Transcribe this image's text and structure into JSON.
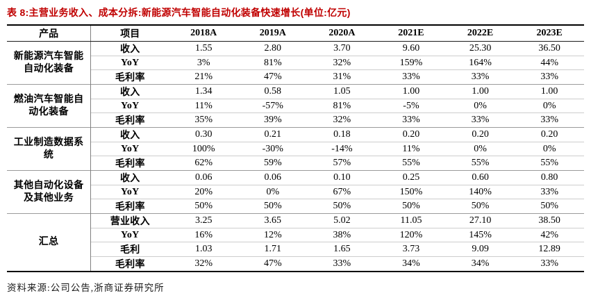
{
  "title": "表 8:主营业务收入、成本分拆:新能源汽车智能自动化装备快速增长(单位:亿元)",
  "colors": {
    "title_red": "#c00000",
    "border_black": "#000000",
    "group_separator": "#9a9a9a",
    "row_separator": "#cdcdcd",
    "text": "#000000"
  },
  "table": {
    "headers": [
      "产品",
      "项目",
      "2018A",
      "2019A",
      "2020A",
      "2021E",
      "2022E",
      "2023E"
    ],
    "groups": [
      {
        "product": "新能源汽车智能自动化装备",
        "rows": [
          {
            "item": "收入",
            "values": [
              "1.55",
              "2.80",
              "3.70",
              "9.60",
              "25.30",
              "36.50"
            ]
          },
          {
            "item": "YoY",
            "values": [
              "3%",
              "81%",
              "32%",
              "159%",
              "164%",
              "44%"
            ]
          },
          {
            "item": "毛利率",
            "values": [
              "21%",
              "47%",
              "31%",
              "33%",
              "33%",
              "33%"
            ]
          }
        ]
      },
      {
        "product": "燃油汽车智能自动化装备",
        "rows": [
          {
            "item": "收入",
            "values": [
              "1.34",
              "0.58",
              "1.05",
              "1.00",
              "1.00",
              "1.00"
            ]
          },
          {
            "item": "YoY",
            "values": [
              "11%",
              "-57%",
              "81%",
              "-5%",
              "0%",
              "0%"
            ]
          },
          {
            "item": "毛利率",
            "values": [
              "35%",
              "39%",
              "32%",
              "33%",
              "33%",
              "33%"
            ]
          }
        ]
      },
      {
        "product": "工业制造数据系统",
        "rows": [
          {
            "item": "收入",
            "values": [
              "0.30",
              "0.21",
              "0.18",
              "0.20",
              "0.20",
              "0.20"
            ]
          },
          {
            "item": "YoY",
            "values": [
              "100%",
              "-30%",
              "-14%",
              "11%",
              "0%",
              "0%"
            ]
          },
          {
            "item": "毛利率",
            "values": [
              "62%",
              "59%",
              "57%",
              "55%",
              "55%",
              "55%"
            ]
          }
        ]
      },
      {
        "product": "其他自动化设备及其他业务",
        "rows": [
          {
            "item": "收入",
            "values": [
              "0.06",
              "0.06",
              "0.10",
              "0.25",
              "0.60",
              "0.80"
            ]
          },
          {
            "item": "YoY",
            "values": [
              "20%",
              "0%",
              "67%",
              "150%",
              "140%",
              "33%"
            ]
          },
          {
            "item": "毛利率",
            "values": [
              "50%",
              "50%",
              "50%",
              "50%",
              "50%",
              "50%"
            ]
          }
        ]
      },
      {
        "product": "汇总",
        "rows": [
          {
            "item": "营业收入",
            "values": [
              "3.25",
              "3.65",
              "5.02",
              "11.05",
              "27.10",
              "38.50"
            ]
          },
          {
            "item": "YoY",
            "values": [
              "16%",
              "12%",
              "38%",
              "120%",
              "145%",
              "42%"
            ]
          },
          {
            "item": "毛利",
            "values": [
              "1.03",
              "1.71",
              "1.65",
              "3.73",
              "9.09",
              "12.89"
            ]
          },
          {
            "item": "毛利率",
            "values": [
              "32%",
              "47%",
              "33%",
              "34%",
              "34%",
              "33%"
            ]
          }
        ]
      }
    ]
  },
  "footer": "资料来源:公司公告,浙商证券研究所"
}
